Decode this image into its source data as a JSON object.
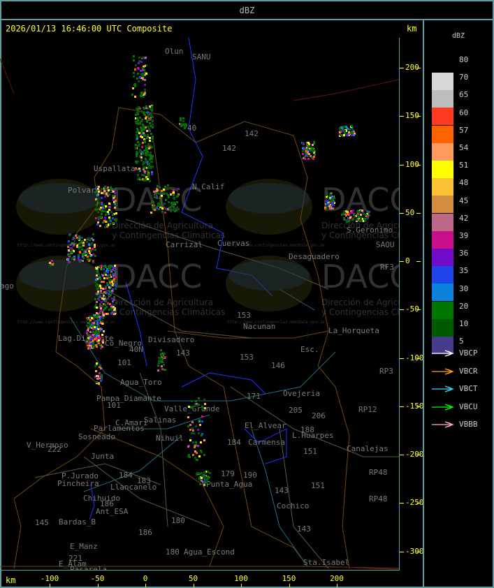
{
  "header": {
    "title": "dBZ"
  },
  "map": {
    "timestamp": "2026/01/13 16:46:00 UTC Composite",
    "unit_top": "km",
    "unit_bottom": "km",
    "x_ticks": [
      -100,
      -50,
      0,
      50,
      100,
      150,
      200
    ],
    "y_ticks": [
      200,
      150,
      100,
      50,
      0,
      -50,
      -100,
      -150,
      -200,
      -250,
      -300
    ],
    "places": [
      "Uspallata",
      "Polvaredas",
      "N_Calif",
      "142",
      "142",
      "40",
      "Carrizal",
      "Cuervas",
      "Desaguadero",
      "S.Geronimo",
      "SAOU",
      "RF3",
      "153",
      "Nacunan",
      "La_Horqueta",
      "Esc.",
      "Divisadero",
      "Lag.Diamante",
      "Co_Negro",
      "40N",
      "101",
      "143",
      "153",
      "146",
      "Agua_Toro",
      "Pampa_Diamante",
      "101",
      "Salinas",
      "Valle_Grande",
      "Parlamentos",
      "C.Amari",
      "Sosneado",
      "Nihuil",
      "V_Hermoso",
      "222",
      "Junta",
      "P.Jurado",
      "Pincheira",
      "184",
      "183",
      "Llancanelo",
      "Chihuido",
      "186",
      "Ant_ESA",
      "145",
      "Bardas_B",
      "180",
      "186",
      "E_Manz",
      "221",
      "E_Alam",
      "Pasarela",
      "180",
      "Agua_Escond",
      "Punta_Agua",
      "179",
      "184",
      "190",
      "Carmensa",
      "L.Huarpes",
      "151",
      "151",
      "143",
      "Cochico",
      "143",
      "Sta.Isabel",
      "Ovejeria",
      "205",
      "206",
      "188",
      "Canalejas",
      "RP12",
      "RP48",
      "RP48",
      "RP3",
      "171",
      "El_Alvear",
      "Olun",
      "SANU",
      "ago"
    ],
    "watermark": {
      "logo": "DACC",
      "line1": "Dirección de Agricultura",
      "line2": "y Contingencias Climáticas",
      "url": "http://www.contingencias.mendoza.gov.ar"
    }
  },
  "legend": {
    "title": "dBZ",
    "scale": [
      {
        "label": "80",
        "color": "#d8d8d8"
      },
      {
        "label": "70",
        "color": "#bdbdbd"
      },
      {
        "label": "65",
        "color": "#ff3a22"
      },
      {
        "label": "60",
        "color": "#ff6200"
      },
      {
        "label": "57",
        "color": "#ff9b5e"
      },
      {
        "label": "54",
        "color": "#ffff00"
      },
      {
        "label": "51",
        "color": "#fcc236"
      },
      {
        "label": "48",
        "color": "#d48c40"
      },
      {
        "label": "45",
        "color": "#bd6888"
      },
      {
        "label": "42",
        "color": "#c9108a"
      },
      {
        "label": "39",
        "color": "#720bc8"
      },
      {
        "label": "36",
        "color": "#1e45ea"
      },
      {
        "label": "35",
        "color": "#0b82dc"
      },
      {
        "label": "30",
        "color": "#007500"
      },
      {
        "label": "20",
        "color": "#005a00"
      },
      {
        "label": "10",
        "color": "#463c8c"
      },
      {
        "label": "5",
        "color": null
      }
    ],
    "radars": [
      {
        "label": "VBCP",
        "color": "#ffffff"
      },
      {
        "label": "VBCR",
        "color": "#ffa500"
      },
      {
        "label": "VBCT",
        "color": "#33e0ff"
      },
      {
        "label": "VBCU",
        "color": "#00ff00"
      },
      {
        "label": "VBBB",
        "color": "#ffb6c1"
      }
    ]
  }
}
